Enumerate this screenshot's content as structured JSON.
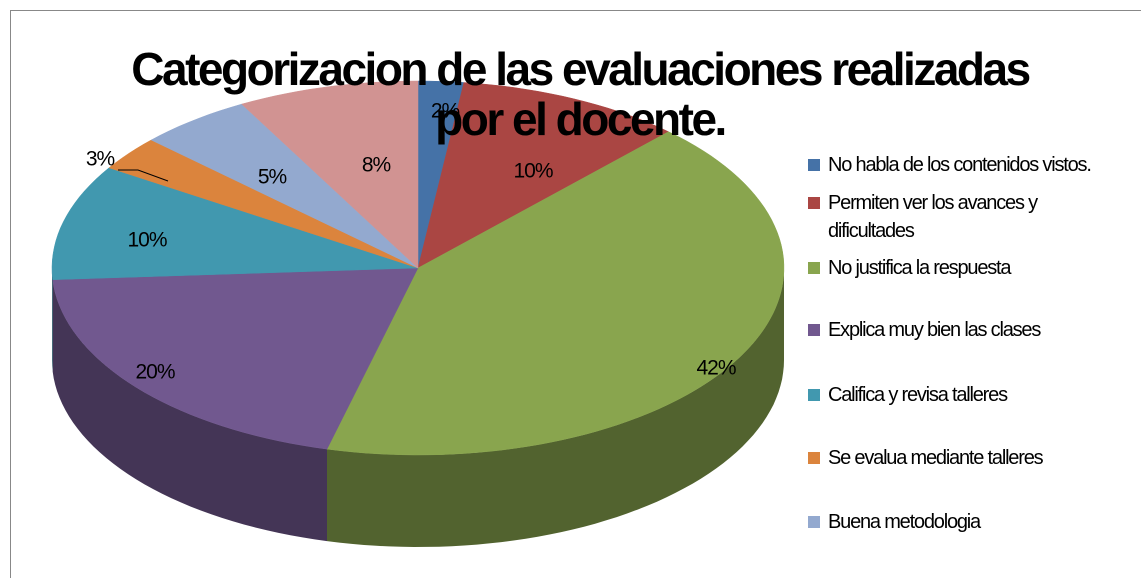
{
  "chart_data": {
    "type": "pie3d",
    "title": "Categorizacion de las evaluaciones realizadas por el docente.",
    "categories": [
      "No habla de los contenidos vistos.",
      "Permiten ver los avances y dificultades",
      "No justifica la respuesta",
      "Explica muy bien las clases",
      "Califica y revisa talleres",
      "Se evalua mediante talleres",
      "Buena metodologia",
      null
    ],
    "values": [
      2,
      10,
      42,
      20,
      10,
      3,
      5,
      8
    ],
    "value_labels": [
      "2%",
      "10%",
      "42%",
      "20%",
      "10%",
      "3%",
      "5%",
      "8%"
    ],
    "colors": [
      "#4572a7",
      "#aa4643",
      "#89a54e",
      "#71588f",
      "#4198af",
      "#db843d",
      "#93a9cf",
      "#d19392"
    ],
    "legend": "right"
  }
}
